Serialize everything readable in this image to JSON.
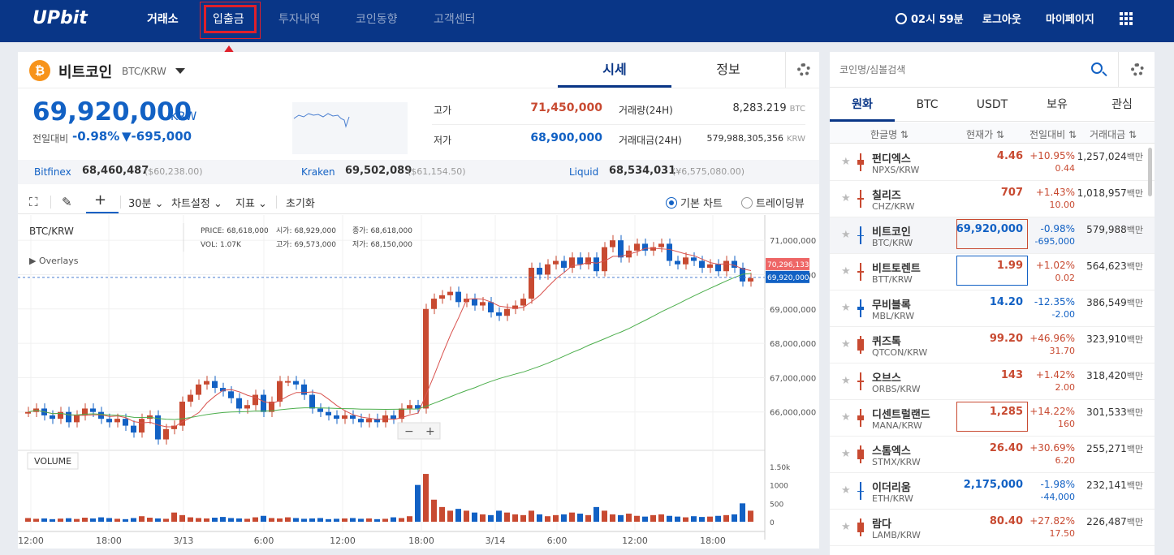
{
  "nav": {
    "logo": "UPbit",
    "items": [
      "거래소",
      "입출금",
      "투자내역",
      "코인동향",
      "고객센터"
    ],
    "time": "02시 59분",
    "logout": "로그아웃",
    "mypage": "마이페이지"
  },
  "coin": {
    "name": "비트코인",
    "pair": "BTC/KRW",
    "tab_price": "시세",
    "tab_info": "정보",
    "price": "69,920,000",
    "unit": "KRW",
    "change_label": "전일대비",
    "change_pct": "-0.98%",
    "change_amt": "▼-695,000",
    "high_label": "고가",
    "high": "71,450,000",
    "low_label": "저가",
    "low": "68,900,000",
    "vol_label": "거래량(24H)",
    "vol": "8,283.219",
    "vol_unit": "BTC",
    "amt_label": "거래대금(24H)",
    "amt": "579,988,305,356",
    "amt_unit": "KRW"
  },
  "exchanges": [
    {
      "name": "Bitfinex",
      "value": "68,460,487",
      "usd": "($60,238.00)"
    },
    {
      "name": "Kraken",
      "value": "69,502,089",
      "usd": "($61,154.50)"
    },
    {
      "name": "Liquid",
      "value": "68,534,031",
      "usd": "(¥6,575,080.00)"
    }
  ],
  "toolbar": {
    "interval": "30분",
    "chart_settings": "차트설정",
    "indicator": "지표",
    "reset": "초기화",
    "basic_chart": "기본 차트",
    "trading_view": "트레이딩뷰"
  },
  "chart_data": {
    "type": "candlestick",
    "title": "BTC/KRW",
    "overlays_label": "Overlays",
    "ohlc_labels": {
      "price_label": "PRICE:",
      "price": "68,618,000",
      "vol_label": "VOL:",
      "vol": "1.07K",
      "open_label": "시가:",
      "open": "68,929,000",
      "high_label": "고가:",
      "high": "69,573,000",
      "close_label": "종가:",
      "close": "68,618,000",
      "low_label": "저가:",
      "low": "68,150,000"
    },
    "y_ticks": [
      "71,000,000",
      "70,000,000",
      "69,000,000",
      "68,000,000",
      "67,000,000",
      "66,000,000"
    ],
    "x_ticks": [
      "12:00",
      "18:00",
      "3/13",
      "6:00",
      "12:00",
      "18:00",
      "3/14",
      "6:00",
      "12:00",
      "18:00"
    ],
    "marker_ma": "70,296,133",
    "marker_price": "69,920,000",
    "volume_label": "VOLUME",
    "volume_ticks": [
      "1.50k",
      "1000",
      "500",
      "0"
    ],
    "closes": [
      66.0,
      66.1,
      65.9,
      65.8,
      66.0,
      65.7,
      65.9,
      66.1,
      66.0,
      65.8,
      65.7,
      65.8,
      65.6,
      65.4,
      65.8,
      65.9,
      65.2,
      65.5,
      65.6,
      66.3,
      66.5,
      66.8,
      66.9,
      66.7,
      66.6,
      66.4,
      66.1,
      66.2,
      66.5,
      66.0,
      66.3,
      66.9,
      66.9,
      66.8,
      66.5,
      66.1,
      66.0,
      65.9,
      65.8,
      65.9,
      65.8,
      65.7,
      65.8,
      65.7,
      65.9,
      65.8,
      66.1,
      66.2,
      66.1,
      69.0,
      69.3,
      69.4,
      69.5,
      69.2,
      69.3,
      69.1,
      69.2,
      68.9,
      68.8,
      69.0,
      69.1,
      69.3,
      70.2,
      70.0,
      70.3,
      70.4,
      70.2,
      70.5,
      70.3,
      70.5,
      70.1,
      70.8,
      71.0,
      70.5,
      70.7,
      70.9,
      70.7,
      70.8,
      70.9,
      70.4,
      70.3,
      70.5,
      70.4,
      70.2,
      70.3,
      70.1,
      70.4,
      70.2,
      69.8,
      69.9
    ],
    "volumes": [
      100,
      80,
      90,
      70,
      85,
      95,
      75,
      110,
      90,
      120,
      100,
      80,
      70,
      100,
      150,
      110,
      90,
      80,
      250,
      180,
      120,
      100,
      90,
      110,
      130,
      100,
      90,
      80,
      120,
      160,
      100,
      90,
      120,
      100,
      80,
      90,
      100,
      70,
      80,
      90,
      100,
      80,
      90,
      70,
      80,
      120,
      100,
      150,
      1000,
      1300,
      600,
      400,
      300,
      350,
      300,
      250,
      200,
      180,
      300,
      250,
      200,
      180,
      300,
      200,
      150,
      180,
      200,
      250,
      220,
      180,
      400,
      300,
      200,
      180,
      220,
      160,
      140,
      180,
      200,
      160,
      140,
      120,
      150,
      130,
      140,
      160,
      180,
      200,
      500,
      300
    ],
    "x_range": [
      "12:00",
      "21:00"
    ],
    "y_range": [
      65.0,
      71.5
    ]
  },
  "sidebar": {
    "search_placeholder": "코인명/심볼검색",
    "tabs": [
      "원화",
      "BTC",
      "USDT",
      "보유",
      "관심"
    ],
    "headers": [
      "한글명 ⇅",
      "현재가 ⇅",
      "전일대비 ⇅",
      "거래대금 ⇅"
    ],
    "rows": [
      {
        "name": "펀디엑스",
        "pair": "NPXS/KRW",
        "price": "4.46",
        "pct": "+10.95%",
        "amt": "0.44",
        "vol": "1,257,024",
        "unit": "백만",
        "dir": "up"
      },
      {
        "name": "칠리즈",
        "pair": "CHZ/KRW",
        "price": "707",
        "pct": "+1.43%",
        "amt": "10.00",
        "vol": "1,018,957",
        "unit": "백만",
        "dir": "up"
      },
      {
        "name": "비트코인",
        "pair": "BTC/KRW",
        "price": "69,920,000",
        "pct": "-0.98%",
        "amt": "-695,000",
        "vol": "579,988",
        "unit": "백만",
        "dir": "down"
      },
      {
        "name": "비트토렌트",
        "pair": "BTT/KRW",
        "price": "1.99",
        "pct": "+1.02%",
        "amt": "0.02",
        "vol": "564,623",
        "unit": "백만",
        "dir": "up"
      },
      {
        "name": "무비블록",
        "pair": "MBL/KRW",
        "price": "14.20",
        "pct": "-12.35%",
        "amt": "-2.00",
        "vol": "386,549",
        "unit": "백만",
        "dir": "down"
      },
      {
        "name": "퀴즈톡",
        "pair": "QTCON/KRW",
        "price": "99.20",
        "pct": "+46.96%",
        "amt": "31.70",
        "vol": "323,910",
        "unit": "백만",
        "dir": "up"
      },
      {
        "name": "오브스",
        "pair": "ORBS/KRW",
        "price": "143",
        "pct": "+1.42%",
        "amt": "2.00",
        "vol": "318,420",
        "unit": "백만",
        "dir": "up"
      },
      {
        "name": "디센트럴랜드",
        "pair": "MANA/KRW",
        "price": "1,285",
        "pct": "+14.22%",
        "amt": "160",
        "vol": "301,533",
        "unit": "백만",
        "dir": "up"
      },
      {
        "name": "스톰엑스",
        "pair": "STMX/KRW",
        "price": "26.40",
        "pct": "+30.69%",
        "amt": "6.20",
        "vol": "255,271",
        "unit": "백만",
        "dir": "up"
      },
      {
        "name": "이더리움",
        "pair": "ETH/KRW",
        "price": "2,175,000",
        "pct": "-1.98%",
        "amt": "-44,000",
        "vol": "232,141",
        "unit": "백만",
        "dir": "down"
      },
      {
        "name": "람다",
        "pair": "LAMB/KRW",
        "price": "80.40",
        "pct": "+27.82%",
        "amt": "17.50",
        "vol": "226,487",
        "unit": "백만",
        "dir": "up"
      }
    ]
  },
  "colors": {
    "nav": "#093687",
    "up": "#c84a31",
    "down": "#1261c4",
    "arrow": "#e0202a"
  }
}
